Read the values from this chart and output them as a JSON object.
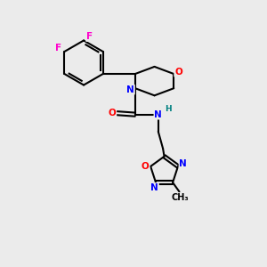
{
  "background_color": "#ebebeb",
  "bond_color": "#000000",
  "atom_colors": {
    "O": "#ff0000",
    "N": "#0000ff",
    "F": "#ff00cc",
    "H": "#008080",
    "C": "#000000"
  },
  "figsize": [
    3.0,
    3.0
  ],
  "dpi": 100
}
